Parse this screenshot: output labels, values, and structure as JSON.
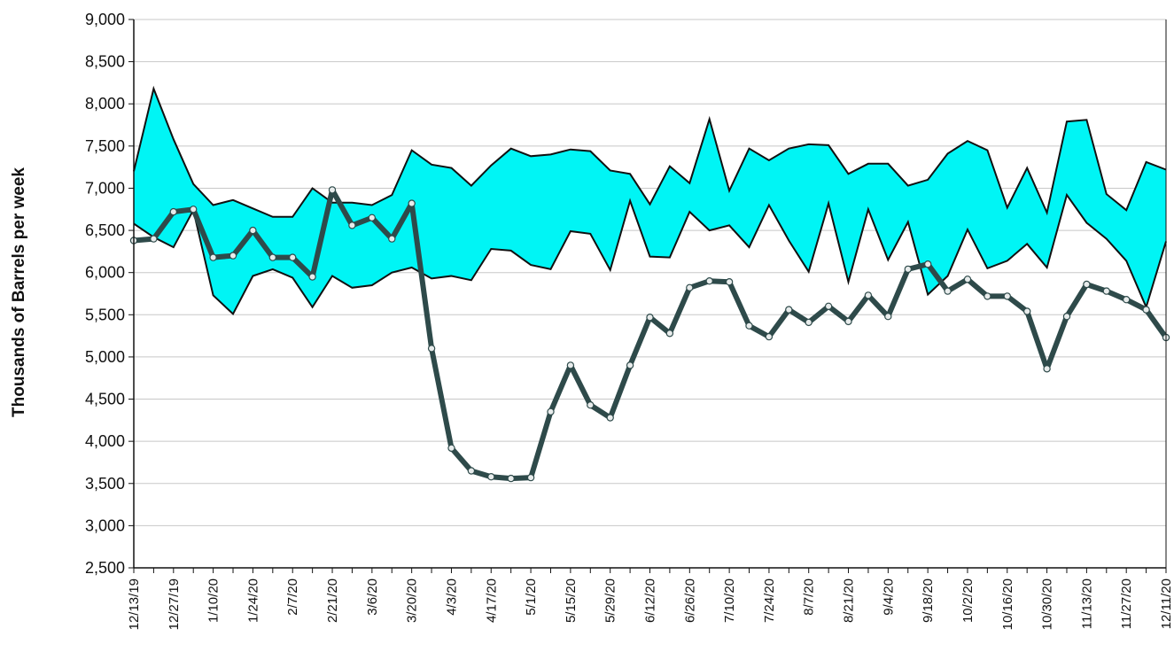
{
  "chart_data": {
    "type": "line",
    "title": "",
    "xlabel": "",
    "ylabel": "Thousands of Barrels per week",
    "ylim": [
      2500,
      9000
    ],
    "yticks": [
      "2,500",
      "3,000",
      "3,500",
      "4,000",
      "4,500",
      "5,000",
      "5,500",
      "6,000",
      "6,500",
      "7,000",
      "7,500",
      "8,000",
      "8,500",
      "9,000"
    ],
    "ytick_values": [
      2500,
      3000,
      3500,
      4000,
      4500,
      5000,
      5500,
      6000,
      6500,
      7000,
      7500,
      8000,
      8500,
      9000
    ],
    "grid": true,
    "xtick_labels": [
      "12/13/19",
      "12/27/19",
      "1/10/20",
      "1/24/20",
      "2/7/20",
      "2/21/20",
      "3/6/20",
      "3/20/20",
      "4/3/20",
      "4/17/20",
      "5/1/20",
      "5/15/20",
      "5/29/20",
      "6/12/20",
      "6/26/20",
      "7/10/20",
      "7/24/20",
      "8/7/20",
      "8/21/20",
      "9/4/20",
      "9/18/20",
      "10/2/20",
      "10/16/20",
      "10/30/20",
      "11/13/20",
      "11/27/20",
      "12/11/20"
    ],
    "band_upper": [
      7200,
      8180,
      7580,
      7050,
      6800,
      6860,
      6760,
      6660,
      6660,
      7000,
      6830,
      6830,
      6800,
      6920,
      7450,
      7280,
      7240,
      7030,
      7270,
      7470,
      7380,
      7400,
      7460,
      7440,
      7210,
      7170,
      6810,
      7260,
      7060,
      7820,
      6970,
      7470,
      7330,
      7470,
      7520,
      7510,
      7170,
      7290,
      7290,
      7030,
      7100,
      7410,
      7560,
      7450,
      6770,
      7240,
      6710,
      7790,
      7810,
      6930,
      6740,
      7310,
      7220
    ],
    "band_lower": [
      6580,
      6420,
      6300,
      6740,
      5730,
      5510,
      5960,
      6040,
      5940,
      5590,
      5960,
      5820,
      5850,
      6000,
      6060,
      5930,
      5960,
      5910,
      6280,
      6260,
      6090,
      6040,
      6490,
      6460,
      6030,
      6850,
      6190,
      6180,
      6720,
      6500,
      6560,
      6300,
      6800,
      6380,
      6010,
      6820,
      5890,
      6750,
      6150,
      6600,
      5740,
      5960,
      6510,
      6050,
      6140,
      6340,
      6060,
      6920,
      6590,
      6400,
      6140,
      5590,
      6370
    ],
    "series": [
      {
        "values": [
          6380,
          6400,
          6720,
          6750,
          6180,
          6200,
          6500,
          6180,
          6180,
          5950,
          6980,
          6560,
          6650,
          6400,
          6820,
          5100,
          3920,
          3650,
          3580,
          3560,
          3570,
          4350,
          4900,
          4430,
          4280,
          4900,
          5470,
          5280,
          5820,
          5900,
          5890,
          5370,
          5240,
          5560,
          5410,
          5600,
          5420,
          5730,
          5480,
          6040,
          6100,
          5780,
          5920,
          5720,
          5720,
          5540,
          4860,
          5480,
          5860,
          5780,
          5680,
          5560,
          5230
        ]
      }
    ],
    "colors": {
      "band": "#00f5f5",
      "band_edge": "#111111",
      "series": "#2e4a4a",
      "marker_fill": "#e8ecec",
      "grid": "#c8c8c8"
    }
  }
}
